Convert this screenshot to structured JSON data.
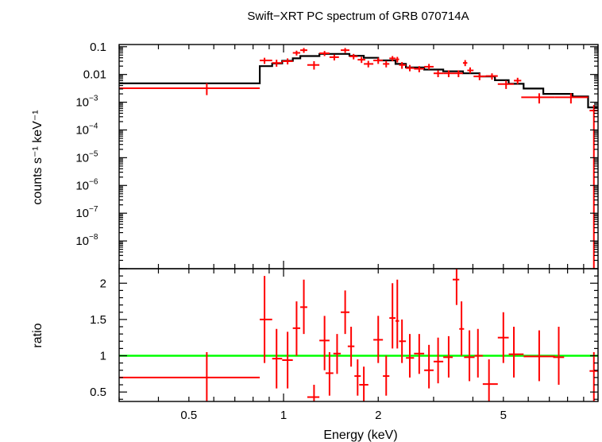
{
  "chart_data": [
    {
      "type": "line",
      "title": "Swift−XRT PC spectrum of GRB 070714A",
      "xlabel": "",
      "ylabel": "counts s⁻¹ keV⁻¹",
      "x_scale": "log",
      "y_scale": "log",
      "xlim": [
        0.3,
        10.0
      ],
      "ylim": [
        1e-09,
        0.12
      ],
      "y_ticks": [
        {
          "value": 0.1,
          "label": "0.1"
        },
        {
          "value": 0.01,
          "label": "0.01"
        },
        {
          "value": 0.001,
          "base": "10",
          "exp": "−3"
        },
        {
          "value": 0.0001,
          "base": "10",
          "exp": "−4"
        },
        {
          "value": 1e-05,
          "base": "10",
          "exp": "−5"
        },
        {
          "value": 1e-06,
          "base": "10",
          "exp": "−6"
        },
        {
          "value": 1e-07,
          "base": "10",
          "exp": "−7"
        },
        {
          "value": 1e-08,
          "base": "10",
          "exp": "−8"
        }
      ],
      "data_points": [
        {
          "x": 0.57,
          "xlo": 0.3,
          "xhi": 0.84,
          "y": 0.0032,
          "ylo": 0.0018,
          "yhi": 0.0048
        },
        {
          "x": 0.87,
          "xlo": 0.84,
          "xhi": 0.92,
          "y": 0.032,
          "ylo": 0.024,
          "yhi": 0.04
        },
        {
          "x": 0.95,
          "xlo": 0.92,
          "xhi": 0.99,
          "y": 0.026,
          "ylo": 0.019,
          "yhi": 0.034
        },
        {
          "x": 1.03,
          "xlo": 0.99,
          "xhi": 1.07,
          "y": 0.03,
          "ylo": 0.023,
          "yhi": 0.038
        },
        {
          "x": 1.1,
          "xlo": 1.07,
          "xhi": 1.13,
          "y": 0.06,
          "ylo": 0.048,
          "yhi": 0.072
        },
        {
          "x": 1.16,
          "xlo": 1.13,
          "xhi": 1.19,
          "y": 0.075,
          "ylo": 0.06,
          "yhi": 0.09
        },
        {
          "x": 1.25,
          "xlo": 1.19,
          "xhi": 1.3,
          "y": 0.022,
          "ylo": 0.015,
          "yhi": 0.03
        },
        {
          "x": 1.35,
          "xlo": 1.3,
          "xhi": 1.4,
          "y": 0.058,
          "ylo": 0.046,
          "yhi": 0.07
        },
        {
          "x": 1.45,
          "xlo": 1.4,
          "xhi": 1.5,
          "y": 0.042,
          "ylo": 0.032,
          "yhi": 0.052
        },
        {
          "x": 1.57,
          "xlo": 1.52,
          "xhi": 1.62,
          "y": 0.075,
          "ylo": 0.06,
          "yhi": 0.09
        },
        {
          "x": 1.67,
          "xlo": 1.62,
          "xhi": 1.72,
          "y": 0.045,
          "ylo": 0.035,
          "yhi": 0.055
        },
        {
          "x": 1.77,
          "xlo": 1.72,
          "xhi": 1.82,
          "y": 0.034,
          "ylo": 0.026,
          "yhi": 0.043
        },
        {
          "x": 1.86,
          "xlo": 1.8,
          "xhi": 1.93,
          "y": 0.024,
          "ylo": 0.018,
          "yhi": 0.031
        },
        {
          "x": 2.0,
          "xlo": 1.93,
          "xhi": 2.07,
          "y": 0.032,
          "ylo": 0.024,
          "yhi": 0.04
        },
        {
          "x": 2.12,
          "xlo": 2.07,
          "xhi": 2.17,
          "y": 0.024,
          "ylo": 0.018,
          "yhi": 0.031
        },
        {
          "x": 2.22,
          "xlo": 2.17,
          "xhi": 2.27,
          "y": 0.038,
          "ylo": 0.03,
          "yhi": 0.046
        },
        {
          "x": 2.3,
          "xlo": 2.27,
          "xhi": 2.33,
          "y": 0.035,
          "ylo": 0.027,
          "yhi": 0.043
        },
        {
          "x": 2.38,
          "xlo": 2.33,
          "xhi": 2.45,
          "y": 0.022,
          "ylo": 0.016,
          "yhi": 0.028
        },
        {
          "x": 2.52,
          "xlo": 2.45,
          "xhi": 2.6,
          "y": 0.017,
          "ylo": 0.013,
          "yhi": 0.022
        },
        {
          "x": 2.7,
          "xlo": 2.6,
          "xhi": 2.8,
          "y": 0.016,
          "ylo": 0.012,
          "yhi": 0.02
        },
        {
          "x": 2.9,
          "xlo": 2.8,
          "xhi": 3.0,
          "y": 0.019,
          "ylo": 0.015,
          "yhi": 0.024
        },
        {
          "x": 3.1,
          "xlo": 3.0,
          "xhi": 3.22,
          "y": 0.011,
          "ylo": 0.008,
          "yhi": 0.014
        },
        {
          "x": 3.35,
          "xlo": 3.22,
          "xhi": 3.45,
          "y": 0.011,
          "ylo": 0.008,
          "yhi": 0.014
        },
        {
          "x": 3.6,
          "xlo": 3.45,
          "xhi": 3.72,
          "y": 0.011,
          "ylo": 0.008,
          "yhi": 0.014
        },
        {
          "x": 3.78,
          "xlo": 3.72,
          "xhi": 3.84,
          "y": 0.026,
          "ylo": 0.02,
          "yhi": 0.033
        },
        {
          "x": 3.92,
          "xlo": 3.84,
          "xhi": 4.02,
          "y": 0.014,
          "ylo": 0.011,
          "yhi": 0.018
        },
        {
          "x": 4.2,
          "xlo": 4.02,
          "xhi": 4.4,
          "y": 0.0085,
          "ylo": 0.0062,
          "yhi": 0.011
        },
        {
          "x": 4.6,
          "xlo": 4.4,
          "xhi": 4.8,
          "y": 0.0088,
          "ylo": 0.0065,
          "yhi": 0.011
        },
        {
          "x": 5.1,
          "xlo": 4.8,
          "xhi": 5.4,
          "y": 0.0045,
          "ylo": 0.003,
          "yhi": 0.006
        },
        {
          "x": 5.55,
          "xlo": 5.4,
          "xhi": 5.7,
          "y": 0.006,
          "ylo": 0.0045,
          "yhi": 0.0076
        },
        {
          "x": 6.5,
          "xlo": 5.7,
          "xhi": 7.3,
          "y": 0.0015,
          "ylo": 0.0009,
          "yhi": 0.0021
        },
        {
          "x": 8.2,
          "xlo": 7.3,
          "xhi": 9.3,
          "y": 0.0015,
          "ylo": 0.0009,
          "yhi": 0.0021
        },
        {
          "x": 9.7,
          "xlo": 9.4,
          "xhi": 10.0,
          "y": 0.0005,
          "ylo": 1e-09,
          "yhi": 0.0008
        }
      ],
      "model_steps": [
        {
          "x0": 0.3,
          "x1": 0.84,
          "y": 0.0048
        },
        {
          "x0": 0.84,
          "x1": 0.92,
          "y": 0.02
        },
        {
          "x0": 0.92,
          "x1": 0.99,
          "y": 0.025
        },
        {
          "x0": 0.99,
          "x1": 1.07,
          "y": 0.031
        },
        {
          "x0": 1.07,
          "x1": 1.13,
          "y": 0.038
        },
        {
          "x0": 1.13,
          "x1": 1.3,
          "y": 0.046
        },
        {
          "x0": 1.3,
          "x1": 1.62,
          "y": 0.055
        },
        {
          "x0": 1.62,
          "x1": 1.8,
          "y": 0.047
        },
        {
          "x0": 1.8,
          "x1": 2.0,
          "y": 0.04
        },
        {
          "x0": 2.0,
          "x1": 2.27,
          "y": 0.032
        },
        {
          "x0": 2.27,
          "x1": 2.45,
          "y": 0.024
        },
        {
          "x0": 2.45,
          "x1": 2.8,
          "y": 0.018
        },
        {
          "x0": 2.8,
          "x1": 3.22,
          "y": 0.015
        },
        {
          "x0": 3.22,
          "x1": 3.72,
          "y": 0.013
        },
        {
          "x0": 3.72,
          "x1": 4.2,
          "y": 0.011
        },
        {
          "x0": 4.2,
          "x1": 4.7,
          "y": 0.0085
        },
        {
          "x0": 4.7,
          "x1": 5.2,
          "y": 0.0062
        },
        {
          "x0": 5.2,
          "x1": 5.8,
          "y": 0.0046
        },
        {
          "x0": 5.8,
          "x1": 6.7,
          "y": 0.0031
        },
        {
          "x0": 6.7,
          "x1": 8.3,
          "y": 0.002
        },
        {
          "x0": 8.3,
          "x1": 9.3,
          "y": 0.0016
        },
        {
          "x0": 9.3,
          "x1": 10.0,
          "y": 0.00065
        }
      ],
      "colors": {
        "data": "#ff0000",
        "model": "#000000"
      }
    },
    {
      "type": "line",
      "xlabel": "Energy (keV)",
      "ylabel": "ratio",
      "x_scale": "log",
      "xlim": [
        0.3,
        10.0
      ],
      "ylim": [
        0.37,
        2.2
      ],
      "x_ticks": [
        {
          "value": 0.5,
          "label": "0.5"
        },
        {
          "value": 1,
          "label": "1"
        },
        {
          "value": 2,
          "label": "2"
        },
        {
          "value": 5,
          "label": "5"
        }
      ],
      "y_ticks": [
        {
          "value": 0.5,
          "label": "0.5"
        },
        {
          "value": 1,
          "label": "1"
        },
        {
          "value": 1.5,
          "label": "1.5"
        },
        {
          "value": 2,
          "label": "2"
        }
      ],
      "reference_line": {
        "y": 1.0,
        "color": "#00ff00"
      },
      "data_points": [
        {
          "x": 0.57,
          "xlo": 0.3,
          "xhi": 0.84,
          "y": 0.7,
          "ylo": 0.37,
          "yhi": 1.05
        },
        {
          "x": 0.87,
          "xlo": 0.84,
          "xhi": 0.92,
          "y": 1.5,
          "ylo": 0.9,
          "yhi": 2.1
        },
        {
          "x": 0.95,
          "xlo": 0.92,
          "xhi": 0.99,
          "y": 0.96,
          "ylo": 0.55,
          "yhi": 1.37
        },
        {
          "x": 1.03,
          "xlo": 0.99,
          "xhi": 1.07,
          "y": 0.94,
          "ylo": 0.55,
          "yhi": 1.33
        },
        {
          "x": 1.1,
          "xlo": 1.07,
          "xhi": 1.13,
          "y": 1.38,
          "ylo": 1.0,
          "yhi": 1.75
        },
        {
          "x": 1.16,
          "xlo": 1.13,
          "xhi": 1.19,
          "y": 1.67,
          "ylo": 1.3,
          "yhi": 2.05
        },
        {
          "x": 1.25,
          "xlo": 1.19,
          "xhi": 1.3,
          "y": 0.43,
          "ylo": 0.37,
          "yhi": 0.6
        },
        {
          "x": 1.35,
          "xlo": 1.3,
          "xhi": 1.4,
          "y": 1.21,
          "ylo": 0.8,
          "yhi": 1.55
        },
        {
          "x": 1.4,
          "xlo": 1.36,
          "xhi": 1.44,
          "y": 0.76,
          "ylo": 0.45,
          "yhi": 1.05
        },
        {
          "x": 1.48,
          "xlo": 1.44,
          "xhi": 1.52,
          "y": 1.03,
          "ylo": 0.75,
          "yhi": 1.3
        },
        {
          "x": 1.57,
          "xlo": 1.52,
          "xhi": 1.62,
          "y": 1.6,
          "ylo": 1.3,
          "yhi": 1.9
        },
        {
          "x": 1.64,
          "xlo": 1.6,
          "xhi": 1.68,
          "y": 1.13,
          "ylo": 0.85,
          "yhi": 1.4
        },
        {
          "x": 1.72,
          "xlo": 1.68,
          "xhi": 1.76,
          "y": 0.72,
          "ylo": 0.45,
          "yhi": 0.95
        },
        {
          "x": 1.8,
          "xlo": 1.74,
          "xhi": 1.86,
          "y": 0.6,
          "ylo": 0.37,
          "yhi": 0.85
        },
        {
          "x": 2.0,
          "xlo": 1.93,
          "xhi": 2.07,
          "y": 1.22,
          "ylo": 0.9,
          "yhi": 1.55
        },
        {
          "x": 2.12,
          "xlo": 2.07,
          "xhi": 2.17,
          "y": 0.72,
          "ylo": 0.45,
          "yhi": 1.0
        },
        {
          "x": 2.22,
          "xlo": 2.17,
          "xhi": 2.27,
          "y": 1.52,
          "ylo": 1.1,
          "yhi": 2.0
        },
        {
          "x": 2.3,
          "xlo": 2.27,
          "xhi": 2.33,
          "y": 1.48,
          "ylo": 1.1,
          "yhi": 2.05
        },
        {
          "x": 2.38,
          "xlo": 2.33,
          "xhi": 2.45,
          "y": 1.2,
          "ylo": 0.9,
          "yhi": 1.5
        },
        {
          "x": 2.52,
          "xlo": 2.45,
          "xhi": 2.6,
          "y": 0.97,
          "ylo": 0.7,
          "yhi": 1.3
        },
        {
          "x": 2.7,
          "xlo": 2.6,
          "xhi": 2.8,
          "y": 1.03,
          "ylo": 0.75,
          "yhi": 1.3
        },
        {
          "x": 2.9,
          "xlo": 2.8,
          "xhi": 3.0,
          "y": 0.8,
          "ylo": 0.55,
          "yhi": 1.15
        },
        {
          "x": 3.1,
          "xlo": 3.0,
          "xhi": 3.22,
          "y": 0.92,
          "ylo": 0.62,
          "yhi": 1.25
        },
        {
          "x": 3.35,
          "xlo": 3.22,
          "xhi": 3.45,
          "y": 0.98,
          "ylo": 0.7,
          "yhi": 1.27
        },
        {
          "x": 3.55,
          "xlo": 3.45,
          "xhi": 3.62,
          "y": 2.05,
          "ylo": 1.7,
          "yhi": 2.2
        },
        {
          "x": 3.68,
          "xlo": 3.62,
          "xhi": 3.75,
          "y": 1.37,
          "ylo": 1.0,
          "yhi": 1.75
        },
        {
          "x": 3.9,
          "xlo": 3.75,
          "xhi": 4.05,
          "y": 0.98,
          "ylo": 0.65,
          "yhi": 1.35
        },
        {
          "x": 4.15,
          "xlo": 4.05,
          "xhi": 4.3,
          "y": 1.0,
          "ylo": 0.7,
          "yhi": 1.37
        },
        {
          "x": 4.5,
          "xlo": 4.3,
          "xhi": 4.8,
          "y": 0.61,
          "ylo": 0.37,
          "yhi": 0.95
        },
        {
          "x": 5.0,
          "xlo": 4.8,
          "xhi": 5.2,
          "y": 1.25,
          "ylo": 0.9,
          "yhi": 1.6
        },
        {
          "x": 5.4,
          "xlo": 5.2,
          "xhi": 5.8,
          "y": 1.02,
          "ylo": 0.7,
          "yhi": 1.4
        },
        {
          "x": 6.5,
          "xlo": 5.8,
          "xhi": 7.3,
          "y": 0.99,
          "ylo": 0.65,
          "yhi": 1.35
        },
        {
          "x": 7.5,
          "xlo": 7.2,
          "xhi": 7.8,
          "y": 0.98,
          "ylo": 0.6,
          "yhi": 1.4
        },
        {
          "x": 9.7,
          "xlo": 9.4,
          "xhi": 10.0,
          "y": 0.79,
          "ylo": 0.37,
          "yhi": 1.05
        }
      ]
    }
  ]
}
